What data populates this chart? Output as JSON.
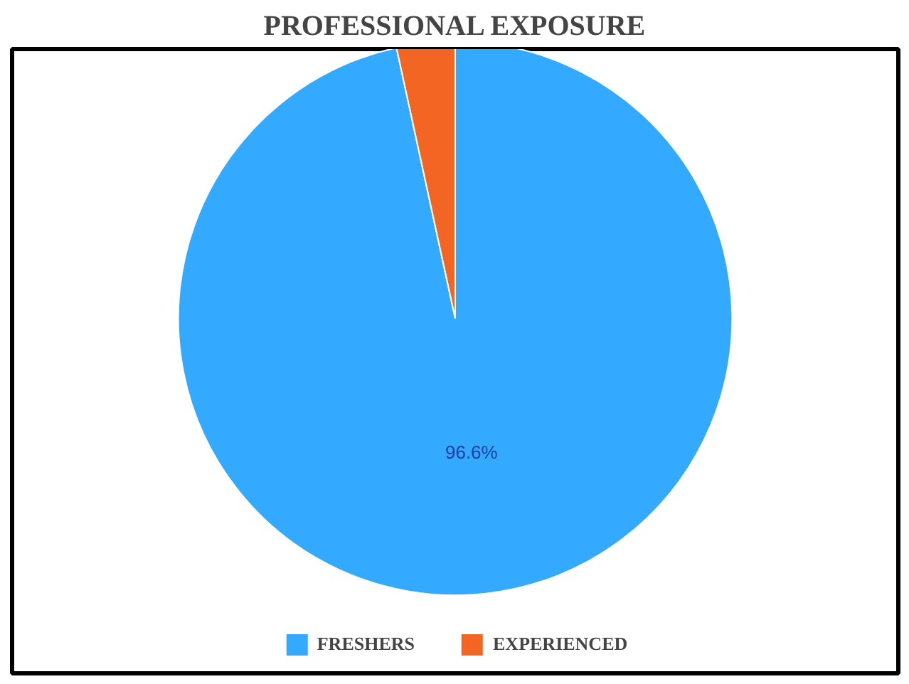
{
  "chart_data": {
    "type": "pie",
    "title": "PROFESSIONAL EXPOSURE",
    "categories": [
      "FRESHERS",
      "EXPERIENCED"
    ],
    "values": [
      96.6,
      3.4
    ],
    "colors": [
      "#33aaff",
      "#f26522"
    ],
    "value_labels": [
      "96.6%",
      null
    ],
    "legend": "bottom"
  }
}
